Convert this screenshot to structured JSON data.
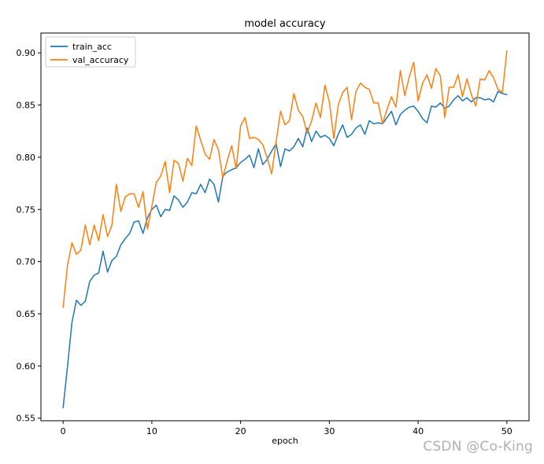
{
  "watermark": "CSDN @Co-King",
  "chart_data": {
    "type": "line",
    "title": "model accuracy",
    "xlabel": "epoch",
    "ylabel": "",
    "xlim": [
      -2.5,
      52.5
    ],
    "ylim": [
      0.5475,
      0.919
    ],
    "x_ticks": [
      0,
      10,
      20,
      30,
      40,
      50
    ],
    "y_ticks": [
      0.55,
      0.6,
      0.65,
      0.7,
      0.75,
      0.8,
      0.85,
      0.9
    ],
    "y_tick_labels": [
      "0.55",
      "0.60",
      "0.65",
      "0.70",
      "0.75",
      "0.80",
      "0.85",
      "0.90"
    ],
    "x": [
      0.0,
      0.5,
      1.0,
      1.5,
      2.0,
      2.5,
      3.0,
      3.5,
      4.0,
      4.5,
      5.0,
      5.5,
      6.0,
      6.5,
      7.0,
      7.5,
      8.0,
      8.5,
      9.0,
      9.5,
      10.0,
      10.5,
      11.0,
      11.5,
      12.0,
      12.5,
      13.0,
      13.5,
      14.0,
      14.5,
      15.0,
      15.5,
      16.0,
      16.5,
      17.0,
      17.5,
      18.0,
      18.5,
      19.0,
      19.5,
      20.0,
      20.5,
      21.0,
      21.5,
      22.0,
      22.5,
      23.0,
      23.5,
      24.0,
      24.5,
      25.0,
      25.5,
      26.0,
      26.5,
      27.0,
      27.5,
      28.0,
      28.5,
      29.0,
      29.5,
      30.0,
      30.5,
      31.0,
      31.5,
      32.0,
      32.5,
      33.0,
      33.5,
      34.0,
      34.5,
      35.0,
      35.5,
      36.0,
      36.5,
      37.0,
      37.5,
      38.0,
      38.5,
      39.0,
      39.5,
      40.0,
      40.5,
      41.0,
      41.5,
      42.0,
      42.5,
      43.0,
      43.5,
      44.0,
      44.5,
      45.0,
      45.5,
      46.0,
      46.5,
      47.0,
      47.5,
      48.0,
      48.5,
      49.0,
      49.5,
      50.0
    ],
    "series": [
      {
        "name": "train_acc",
        "color": "#1f77b4",
        "values": [
          0.56,
          0.6,
          0.642,
          0.663,
          0.658,
          0.662,
          0.681,
          0.687,
          0.689,
          0.71,
          0.69,
          0.701,
          0.705,
          0.716,
          0.722,
          0.727,
          0.738,
          0.739,
          0.727,
          0.742,
          0.75,
          0.754,
          0.743,
          0.75,
          0.749,
          0.763,
          0.759,
          0.752,
          0.757,
          0.766,
          0.765,
          0.774,
          0.766,
          0.779,
          0.774,
          0.757,
          0.782,
          0.786,
          0.788,
          0.79,
          0.795,
          0.798,
          0.802,
          0.79,
          0.808,
          0.793,
          0.798,
          0.806,
          0.813,
          0.791,
          0.808,
          0.806,
          0.81,
          0.818,
          0.81,
          0.828,
          0.815,
          0.825,
          0.819,
          0.821,
          0.818,
          0.811,
          0.822,
          0.831,
          0.819,
          0.822,
          0.828,
          0.831,
          0.822,
          0.835,
          0.832,
          0.833,
          0.832,
          0.838,
          0.844,
          0.831,
          0.841,
          0.845,
          0.848,
          0.849,
          0.844,
          0.837,
          0.833,
          0.849,
          0.848,
          0.852,
          0.847,
          0.849,
          0.855,
          0.859,
          0.854,
          0.857,
          0.853,
          0.857,
          0.857,
          0.855,
          0.856,
          0.853,
          0.863,
          0.861,
          0.86
        ]
      },
      {
        "name": "val_accuracy",
        "color": "#ff7f0e",
        "values": [
          0.656,
          0.697,
          0.718,
          0.707,
          0.711,
          0.735,
          0.716,
          0.735,
          0.72,
          0.745,
          0.724,
          0.735,
          0.774,
          0.748,
          0.762,
          0.765,
          0.765,
          0.752,
          0.767,
          0.731,
          0.753,
          0.776,
          0.782,
          0.796,
          0.766,
          0.797,
          0.794,
          0.777,
          0.799,
          0.792,
          0.83,
          0.816,
          0.803,
          0.798,
          0.817,
          0.807,
          0.78,
          0.797,
          0.811,
          0.789,
          0.83,
          0.838,
          0.818,
          0.819,
          0.817,
          0.812,
          0.799,
          0.784,
          0.815,
          0.844,
          0.831,
          0.835,
          0.861,
          0.845,
          0.839,
          0.823,
          0.835,
          0.852,
          0.838,
          0.869,
          0.853,
          0.818,
          0.85,
          0.862,
          0.867,
          0.836,
          0.863,
          0.871,
          0.867,
          0.865,
          0.852,
          0.852,
          0.832,
          0.846,
          0.858,
          0.848,
          0.883,
          0.859,
          0.877,
          0.891,
          0.854,
          0.871,
          0.879,
          0.866,
          0.885,
          0.878,
          0.838,
          0.867,
          0.867,
          0.879,
          0.858,
          0.875,
          0.86,
          0.849,
          0.875,
          0.874,
          0.883,
          0.876,
          0.865,
          0.862,
          0.902
        ]
      }
    ],
    "legend_placement": "top-left",
    "grid": false
  }
}
